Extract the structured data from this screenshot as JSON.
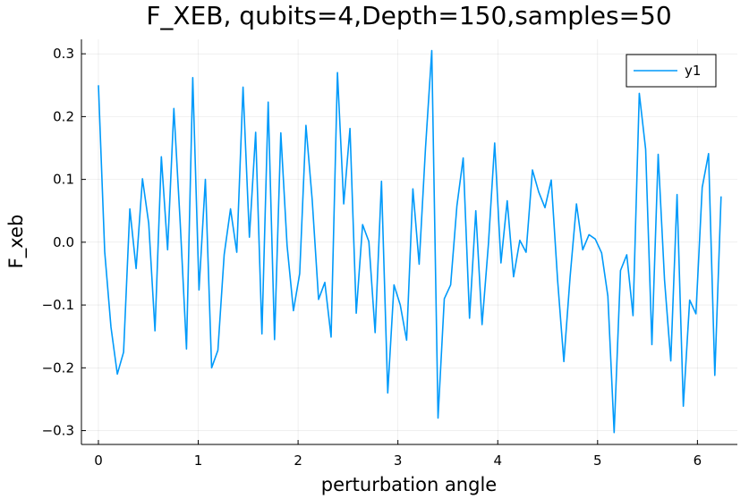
{
  "chart_data": {
    "type": "line",
    "title": "F_XEB, qubits=4,Depth=150,samples=50",
    "xlabel": "perturbation angle",
    "ylabel": "F_xeb",
    "xlim": [
      -0.17,
      6.4
    ],
    "ylim": [
      -0.322,
      0.323
    ],
    "xticks": [
      0,
      1,
      2,
      3,
      4,
      5,
      6
    ],
    "xtick_labels": [
      "0",
      "1",
      "2",
      "3",
      "4",
      "5",
      "6"
    ],
    "yticks": [
      -0.3,
      -0.2,
      -0.1,
      0.0,
      0.1,
      0.2,
      0.3
    ],
    "ytick_labels": [
      "−0.3",
      "−0.2",
      "−0.1",
      "0.0",
      "0.1",
      "0.2",
      "0.3"
    ],
    "grid": true,
    "legend_position": "top-right",
    "line_color": "#009AFA",
    "series": [
      {
        "name": "y1",
        "x": [
          0.0,
          0.063,
          0.126,
          0.189,
          0.252,
          0.315,
          0.378,
          0.441,
          0.504,
          0.567,
          0.63,
          0.693,
          0.756,
          0.819,
          0.882,
          0.945,
          1.008,
          1.071,
          1.134,
          1.197,
          1.26,
          1.323,
          1.386,
          1.449,
          1.512,
          1.575,
          1.638,
          1.701,
          1.764,
          1.827,
          1.89,
          1.953,
          2.016,
          2.079,
          2.142,
          2.205,
          2.268,
          2.331,
          2.394,
          2.457,
          2.52,
          2.583,
          2.646,
          2.709,
          2.772,
          2.835,
          2.898,
          2.961,
          3.024,
          3.087,
          3.15,
          3.213,
          3.276,
          3.339,
          3.402,
          3.465,
          3.528,
          3.591,
          3.654,
          3.717,
          3.78,
          3.843,
          3.906,
          3.969,
          4.032,
          4.095,
          4.158,
          4.221,
          4.284,
          4.347,
          4.41,
          4.473,
          4.536,
          4.599,
          4.662,
          4.725,
          4.788,
          4.851,
          4.914,
          4.977,
          5.04,
          5.103,
          5.166,
          5.229,
          5.292,
          5.355,
          5.418,
          5.481,
          5.544,
          5.607,
          5.67,
          5.733,
          5.796,
          5.859,
          5.922,
          5.985,
          6.048,
          6.111,
          6.174,
          6.237
        ],
        "y": [
          0.25,
          -0.015,
          -0.135,
          -0.21,
          -0.175,
          0.053,
          -0.042,
          0.101,
          0.03,
          -0.141,
          0.136,
          -0.012,
          0.213,
          0.033,
          -0.17,
          0.262,
          -0.076,
          0.1,
          -0.2,
          -0.172,
          -0.02,
          0.053,
          -0.016,
          0.247,
          0.008,
          0.175,
          -0.146,
          0.223,
          -0.155,
          0.174,
          -0.005,
          -0.109,
          -0.05,
          0.186,
          0.067,
          -0.091,
          -0.064,
          -0.151,
          0.27,
          0.061,
          0.181,
          -0.113,
          0.028,
          0.001,
          -0.144,
          0.097,
          -0.24,
          -0.068,
          -0.1,
          -0.156,
          0.085,
          -0.035,
          0.15,
          0.305,
          -0.28,
          -0.09,
          -0.068,
          0.058,
          0.134,
          -0.121,
          0.05,
          -0.131,
          -0.003,
          0.158,
          -0.033,
          0.066,
          -0.055,
          0.003,
          -0.016,
          0.115,
          0.08,
          0.055,
          0.099,
          -0.06,
          -0.19,
          -0.055,
          0.061,
          -0.012,
          0.012,
          0.005,
          -0.017,
          -0.086,
          -0.303,
          -0.045,
          -0.02,
          -0.117,
          0.237,
          0.148,
          -0.163,
          0.14,
          -0.06,
          -0.189,
          0.076,
          -0.261,
          -0.092,
          -0.114,
          0.087,
          0.141,
          -0.212,
          0.073
        ]
      }
    ]
  }
}
